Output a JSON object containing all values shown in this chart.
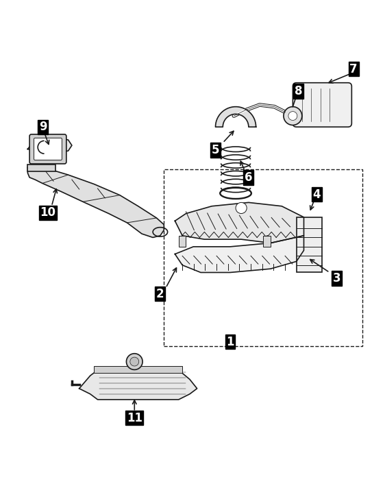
{
  "background_color": "#ffffff",
  "line_color": "#1a1a1a",
  "fig_width": 5.43,
  "fig_height": 7.09,
  "dpi": 100
}
